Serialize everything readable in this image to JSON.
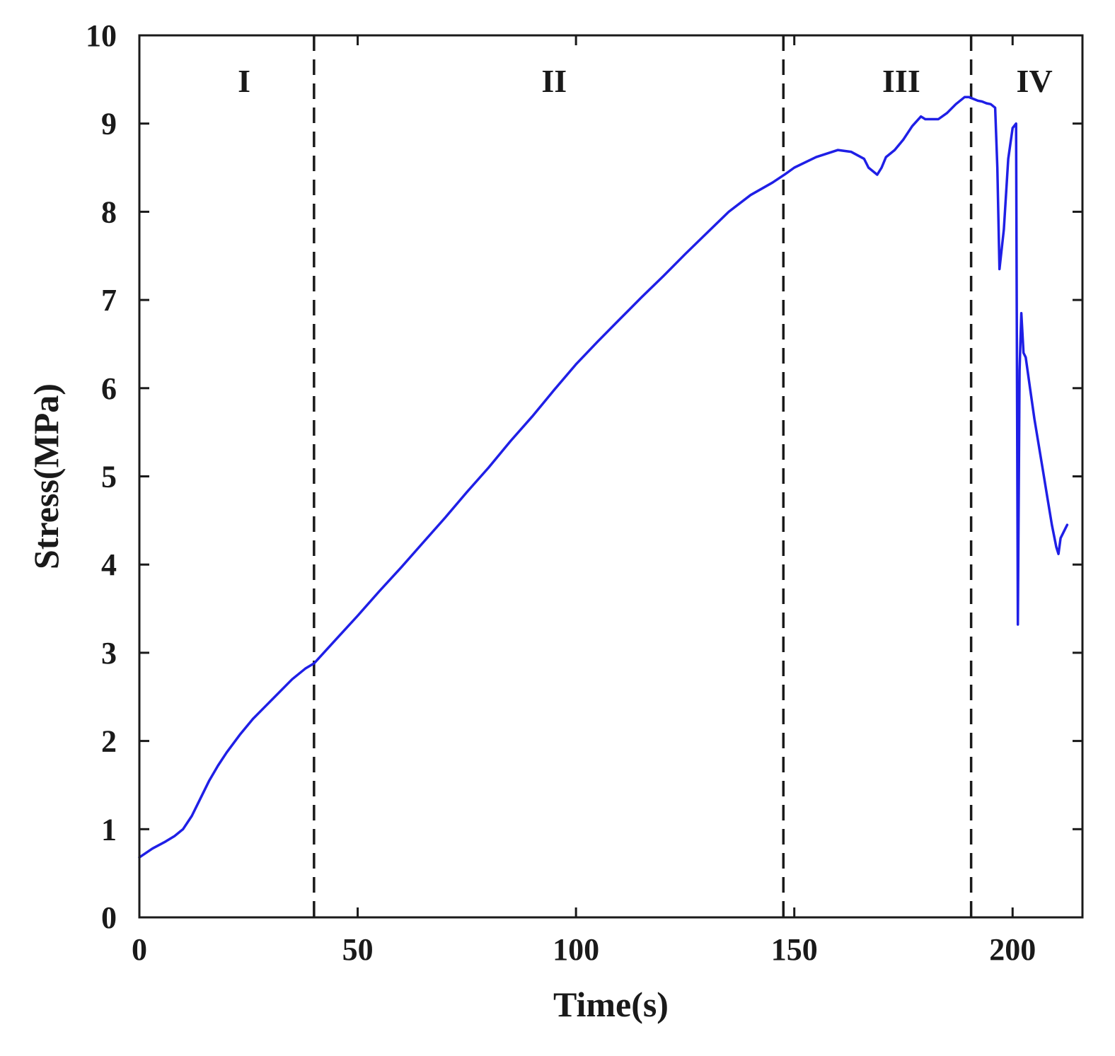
{
  "chart_data": {
    "type": "line",
    "title": "",
    "xlabel": "Time(s)",
    "ylabel": "Stress(MPa)",
    "xlim": [
      0,
      216
    ],
    "ylim": [
      0,
      10
    ],
    "xticks": [
      0,
      50,
      100,
      150,
      200
    ],
    "yticks": [
      0,
      1,
      2,
      3,
      4,
      5,
      6,
      7,
      8,
      9,
      10
    ],
    "grid": false,
    "legend": "none",
    "line_color": "#1f1fe6",
    "phase_boundaries": [
      40,
      147.5,
      190.5
    ],
    "phases": [
      {
        "label": "I",
        "x": 24
      },
      {
        "label": "II",
        "x": 95
      },
      {
        "label": "III",
        "x": 174.5
      },
      {
        "label": "IV",
        "x": 205
      }
    ],
    "series": [
      {
        "x": [
          0,
          3,
          6,
          8,
          10,
          12,
          14,
          16,
          18,
          20,
          23,
          26,
          29,
          32,
          35,
          38,
          40,
          45,
          50,
          55,
          60,
          65,
          70,
          75,
          80,
          85,
          90,
          95,
          100,
          105,
          110,
          115,
          120,
          125,
          130,
          135,
          140,
          145,
          148,
          150,
          155,
          160,
          163,
          166,
          167,
          169,
          170,
          171,
          173,
          175,
          177,
          179,
          180,
          181,
          183,
          185,
          187,
          189,
          190,
          191,
          192,
          193,
          194,
          195,
          196,
          196.5,
          197,
          198,
          199,
          200,
          200.8,
          201.2,
          201.6,
          202,
          202.5,
          203,
          204,
          205,
          206,
          207,
          208,
          209,
          210,
          210.5,
          211,
          212,
          212.5
        ],
        "y": [
          0.68,
          0.78,
          0.86,
          0.92,
          1.0,
          1.15,
          1.35,
          1.55,
          1.72,
          1.87,
          2.07,
          2.25,
          2.4,
          2.55,
          2.7,
          2.82,
          2.88,
          3.15,
          3.42,
          3.7,
          3.97,
          4.25,
          4.53,
          4.82,
          5.1,
          5.4,
          5.68,
          5.98,
          6.27,
          6.53,
          6.78,
          7.03,
          7.27,
          7.52,
          7.76,
          8.0,
          8.19,
          8.33,
          8.43,
          8.5,
          8.62,
          8.7,
          8.68,
          8.6,
          8.5,
          8.42,
          8.5,
          8.62,
          8.7,
          8.82,
          8.97,
          9.08,
          9.05,
          9.05,
          9.05,
          9.12,
          9.22,
          9.3,
          9.3,
          9.28,
          9.26,
          9.25,
          9.23,
          9.22,
          9.18,
          8.5,
          7.35,
          7.8,
          8.6,
          8.95,
          9.0,
          3.32,
          6.2,
          6.85,
          6.4,
          6.35,
          6.0,
          5.65,
          5.35,
          5.05,
          4.75,
          4.45,
          4.2,
          4.12,
          4.3,
          4.4,
          4.45
        ]
      }
    ]
  }
}
